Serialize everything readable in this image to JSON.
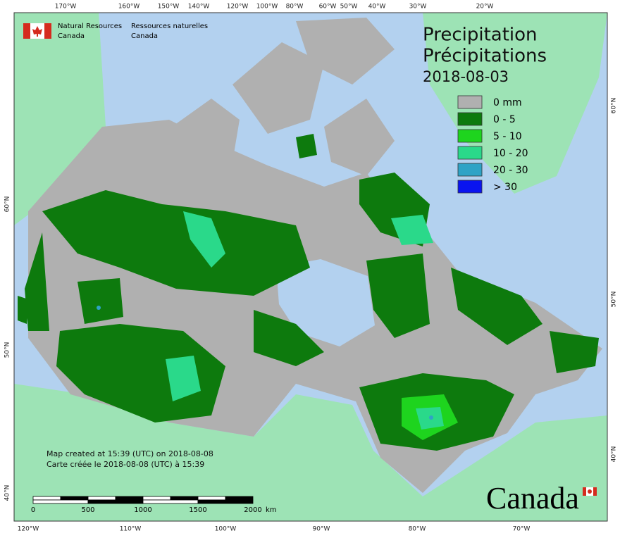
{
  "header": {
    "org_en": "Natural Resources",
    "country_en": "Canada",
    "org_fr": "Ressources naturelles",
    "country_fr": "Canada"
  },
  "title": {
    "en": "Precipitation",
    "fr": "Précipitations",
    "date": "2018-08-03"
  },
  "legend": [
    {
      "label": "0 mm",
      "color": "#b0b0b0"
    },
    {
      "label": "0 - 5",
      "color": "#0d7a0d"
    },
    {
      "label": "5 - 10",
      "color": "#1ed41e"
    },
    {
      "label": "10 - 20",
      "color": "#2ad98a"
    },
    {
      "label": "20 - 30",
      "color": "#2fa3c6"
    },
    {
      "label": "> 30",
      "color": "#0a14f0"
    }
  ],
  "top_longitudes": [
    "170°W",
    "160°W",
    "150°W",
    "140°W",
    "120°W",
    "100°W",
    "80°W",
    "60°W",
    "50°W",
    "40°W",
    "30°W",
    "20°W"
  ],
  "bottom_longitudes": [
    "120°W",
    "110°W",
    "100°W",
    "90°W",
    "80°W",
    "70°W"
  ],
  "left_latitudes": [
    "60°N",
    "50°N",
    "40°N"
  ],
  "right_latitudes": [
    "60°N",
    "50°N",
    "40°N"
  ],
  "footer": {
    "created_en": "Map created at 15:39 (UTC) on 2018-08-08",
    "created_fr": "Carte créée le 2018-08-08 (UTC) à 15:39"
  },
  "scale": {
    "ticks": [
      "0",
      "500",
      "1000",
      "1500",
      "2000"
    ],
    "unit": "km"
  },
  "wordmark": "Canada"
}
